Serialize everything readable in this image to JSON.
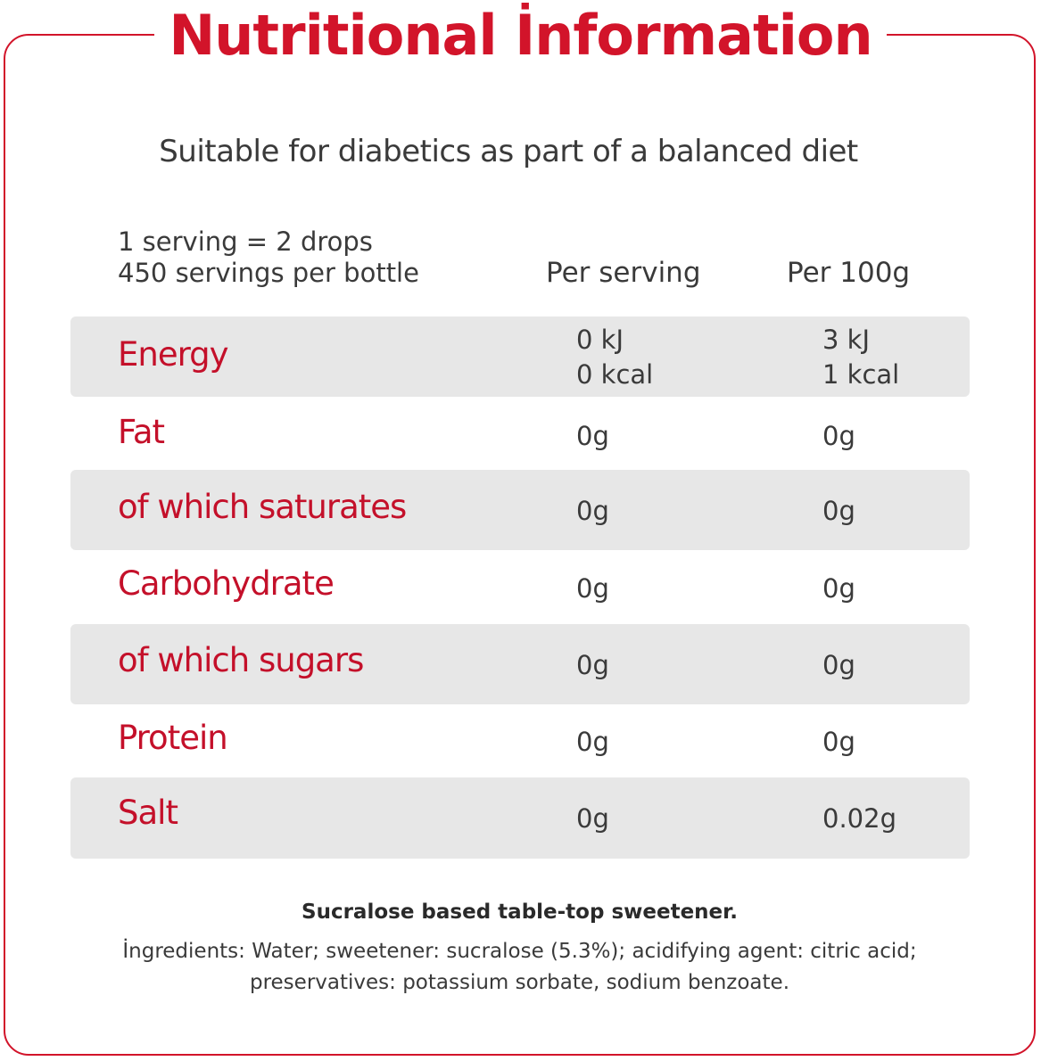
{
  "title": "Nutritional İnformation",
  "subtitle": "Suitable for diabetics as part of a balanced diet",
  "serving": {
    "line1": "1 serving = 2 drops",
    "line2": "450 servings per bottle"
  },
  "columns": {
    "per_serving": "Per serving",
    "per_100g": "Per 100g"
  },
  "rows": [
    {
      "label": "Energy",
      "per_serving_1": "0 kJ",
      "per_serving_2": "0 kcal",
      "per_100g_1": "3 kJ",
      "per_100g_2": "1 kcal"
    },
    {
      "label": "Fat",
      "per_serving": "0g",
      "per_100g": "0g"
    },
    {
      "label": "of which saturates",
      "per_serving": "0g",
      "per_100g": "0g"
    },
    {
      "label": "Carbohydrate",
      "per_serving": "0g",
      "per_100g": "0g"
    },
    {
      "label": "of which sugars",
      "per_serving": "0g",
      "per_100g": "0g"
    },
    {
      "label": "Protein",
      "per_serving": "0g",
      "per_100g": "0g"
    },
    {
      "label": "Salt",
      "per_serving": "0g",
      "per_100g": "0.02g"
    }
  ],
  "footer": {
    "product": "Sucralose based table-top sweetener.",
    "ingredients_line1": "İngredients: Water; sweetener: sucralose (5.3%); acidifying agent: citric acid;",
    "ingredients_line2": "preservatives: potassium sorbate, sodium benzoate."
  },
  "colors": {
    "accent": "#d2142a",
    "row_shade": "#e7e7e7",
    "text": "#3a3a3a"
  }
}
